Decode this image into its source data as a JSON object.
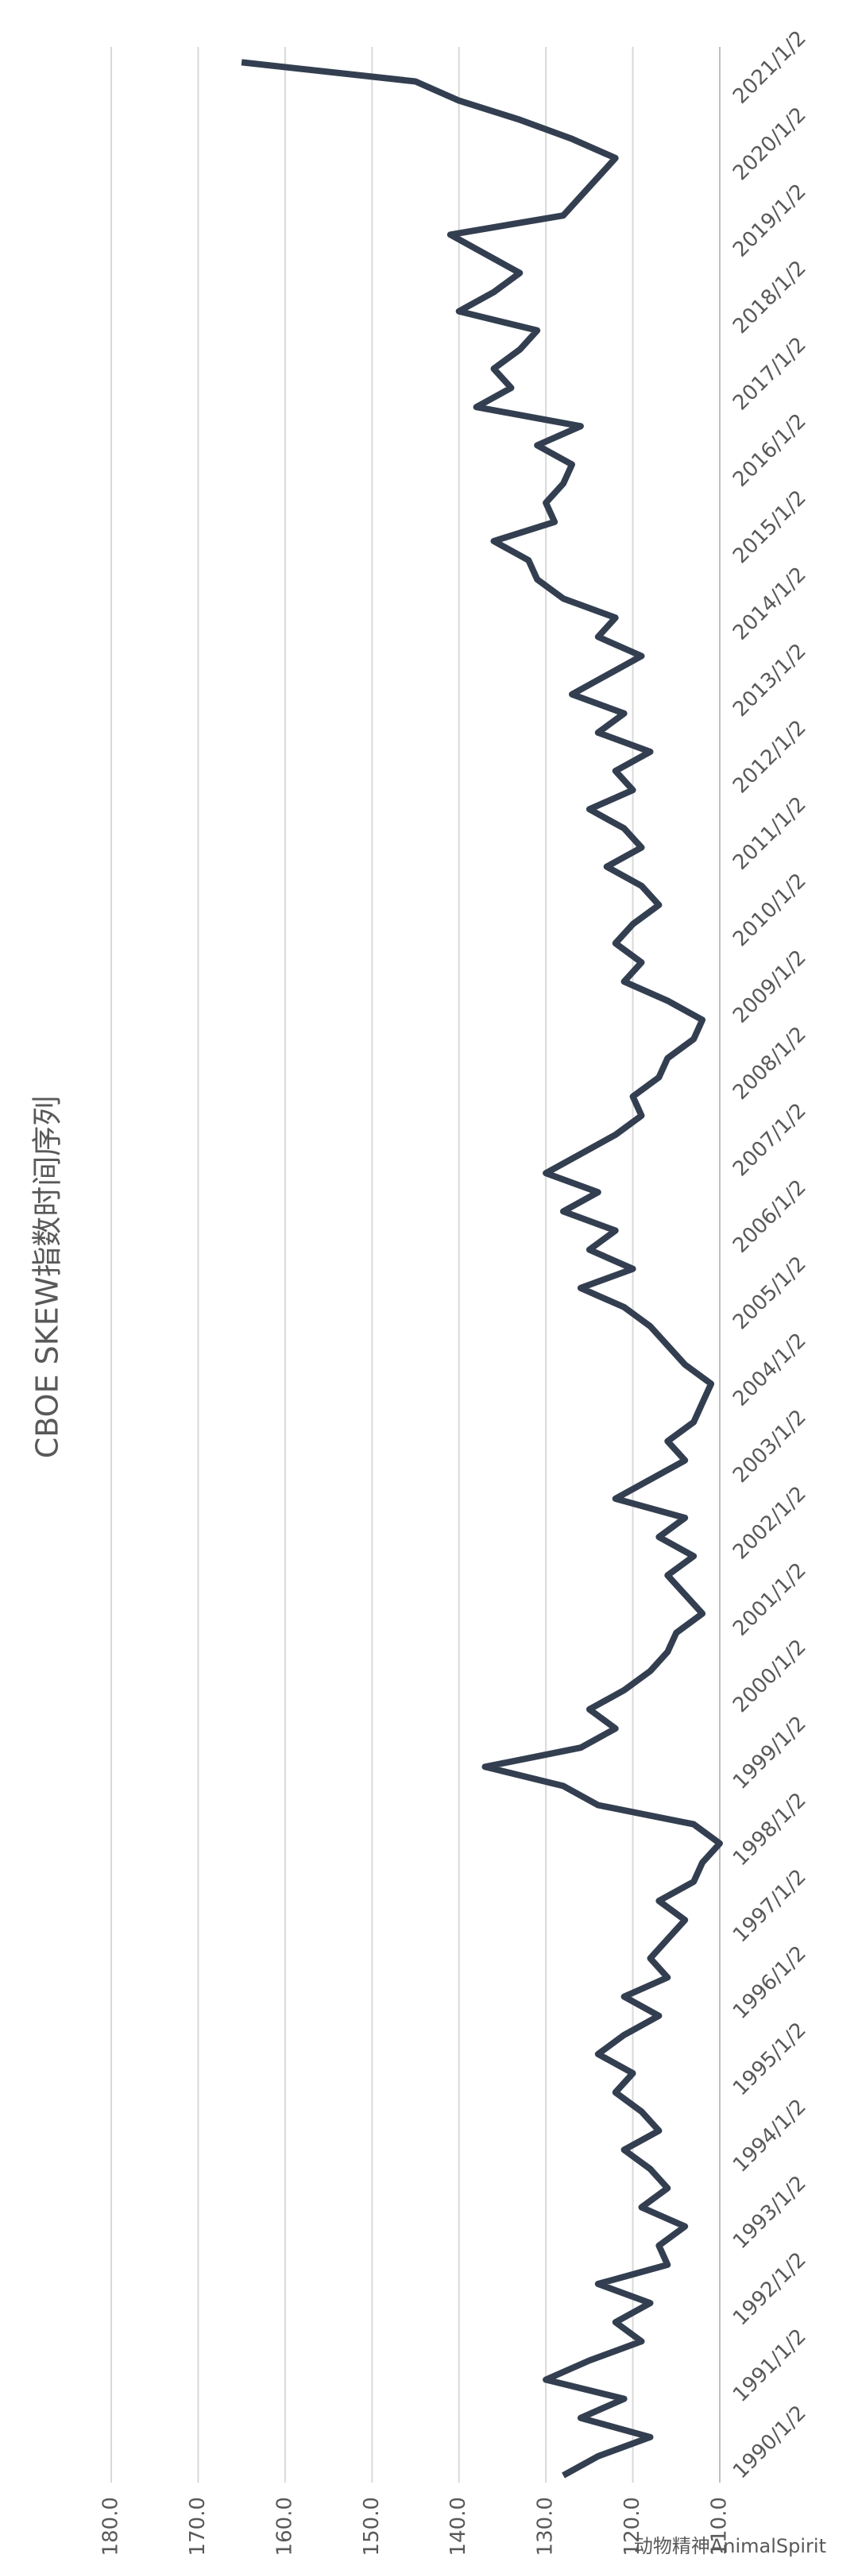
{
  "chart_data": {
    "type": "line",
    "title": "CBOE SKEW指数时间序列",
    "watermark": "动物精神AnimalSpirit",
    "categories": [
      "1990/1/2",
      null,
      null,
      null,
      "1991/1/2",
      null,
      null,
      null,
      "1992/1/2",
      null,
      null,
      null,
      "1993/1/2",
      null,
      null,
      null,
      "1994/1/2",
      null,
      null,
      null,
      "1995/1/2",
      null,
      null,
      null,
      "1996/1/2",
      null,
      null,
      null,
      "1997/1/2",
      null,
      null,
      null,
      "1998/1/2",
      null,
      null,
      null,
      "1999/1/2",
      null,
      null,
      null,
      "2000/1/2",
      null,
      null,
      null,
      "2001/1/2",
      null,
      null,
      null,
      "2002/1/2",
      null,
      null,
      null,
      "2003/1/2",
      null,
      null,
      null,
      "2004/1/2",
      null,
      null,
      null,
      "2005/1/2",
      null,
      null,
      null,
      "2006/1/2",
      null,
      null,
      null,
      "2007/1/2",
      null,
      null,
      null,
      "2008/1/2",
      null,
      null,
      null,
      "2009/1/2",
      null,
      null,
      null,
      "2010/1/2",
      null,
      null,
      null,
      "2011/1/2",
      null,
      null,
      null,
      "2012/1/2",
      null,
      null,
      null,
      "2013/1/2",
      null,
      null,
      null,
      "2014/1/2",
      null,
      null,
      null,
      "2015/1/2",
      null,
      null,
      null,
      "2016/1/2",
      null,
      null,
      null,
      "2017/1/2",
      null,
      null,
      null,
      "2018/1/2",
      null,
      null,
      null,
      "2019/1/2",
      null,
      null,
      null,
      "2020/1/2",
      null,
      null,
      null,
      "2021/1/2",
      null,
      null
    ],
    "values": [
      128,
      124,
      118,
      126,
      121,
      130,
      125,
      119,
      122,
      118,
      124,
      116,
      117,
      114,
      119,
      116,
      118,
      121,
      117,
      119,
      122,
      120,
      124,
      121,
      117,
      121,
      116,
      118,
      116,
      114,
      117,
      113,
      112,
      110,
      113,
      124,
      128,
      137,
      126,
      122,
      125,
      121,
      118,
      116,
      115,
      112,
      114,
      116,
      113,
      117,
      114,
      122,
      118,
      114,
      116,
      113,
      112,
      111,
      114,
      116,
      118,
      121,
      126,
      120,
      125,
      122,
      128,
      124,
      130,
      126,
      122,
      119,
      120,
      117,
      116,
      113,
      112,
      116,
      121,
      119,
      122,
      120,
      117,
      119,
      123,
      119,
      121,
      125,
      120,
      122,
      118,
      124,
      121,
      127,
      123,
      119,
      124,
      122,
      128,
      131,
      132,
      136,
      129,
      130,
      128,
      127,
      131,
      126,
      138,
      134,
      136,
      133,
      131,
      140,
      136,
      133,
      137,
      141,
      128,
      126,
      124,
      122,
      127,
      133,
      140,
      145,
      165
    ],
    "color": "#333f50",
    "ylim": [
      110,
      180
    ],
    "yticks": [
      {
        "value": 110,
        "label": "110.0"
      },
      {
        "value": 120,
        "label": "120.0"
      },
      {
        "value": 130,
        "label": "130.0"
      },
      {
        "value": 140,
        "label": "140.0"
      },
      {
        "value": 150,
        "label": "150.0"
      },
      {
        "value": 160,
        "label": "160.0"
      },
      {
        "value": 170,
        "label": "170.0"
      },
      {
        "value": 180,
        "label": "180.0"
      }
    ],
    "grid": true
  }
}
